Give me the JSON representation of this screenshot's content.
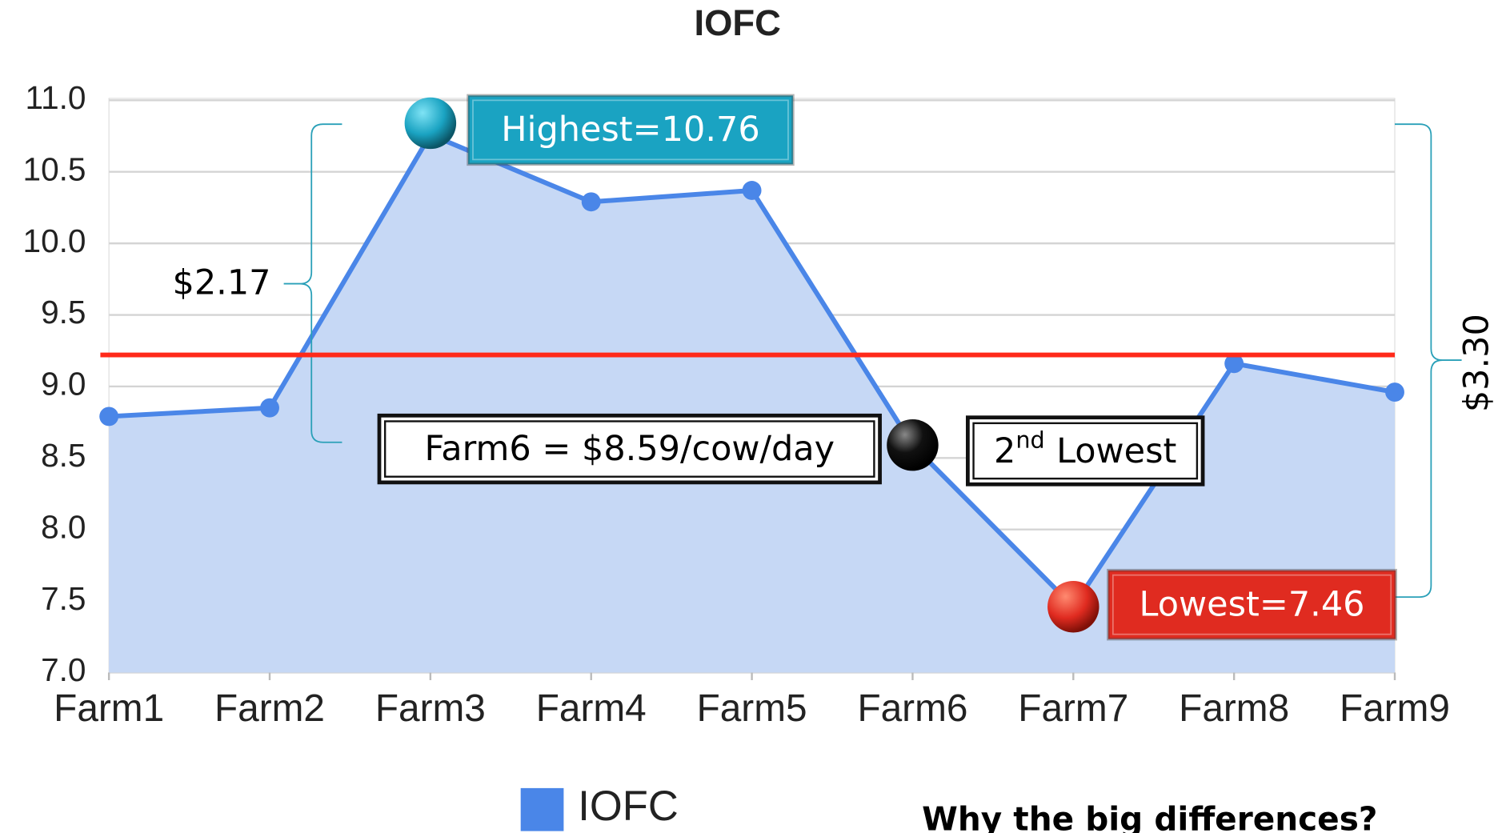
{
  "chart_data": {
    "type": "area",
    "title": "IOFC",
    "categories": [
      "Farm1",
      "Farm2",
      "Farm3",
      "Farm4",
      "Farm5",
      "Farm6",
      "Farm7",
      "Farm8",
      "Farm9"
    ],
    "series": [
      {
        "name": "IOFC",
        "color": "#4a86e8",
        "fill": "#c6d8f5",
        "values": [
          8.79,
          8.85,
          10.76,
          10.29,
          10.37,
          8.59,
          7.46,
          9.16,
          8.96
        ]
      }
    ],
    "ylim": [
      7,
      11
    ],
    "yticks": [
      {
        "value": 7,
        "label": "7.0"
      },
      7.5,
      {
        "value": 8,
        "label": "8.0"
      },
      8.5,
      {
        "value": 9,
        "label": "9.0"
      },
      9.5,
      {
        "value": 10,
        "label": "10.0"
      },
      10.5,
      {
        "value": 11,
        "label": "11.0"
      }
    ],
    "grid": true,
    "legend": "bottom",
    "reference_line": {
      "value": 9.22,
      "color": "#ff2a1a"
    },
    "annotations": [
      {
        "category": "Farm3",
        "text": "Highest=10.76",
        "color": "#1aa3c2"
      },
      {
        "category": "Farm6",
        "text": "Farm6 = $8.59/cow/day",
        "color": "#111111"
      },
      {
        "category": "Farm6",
        "text": "2",
        "sup": "nd",
        "rest": "Lowest",
        "color": "#111111"
      },
      {
        "category": "Farm7",
        "text": "Lowest=7.46",
        "color": "#e02b20"
      }
    ],
    "range_labels": [
      "$2.17",
      "$3.30"
    ],
    "footnote": "Why the big differences?"
  }
}
